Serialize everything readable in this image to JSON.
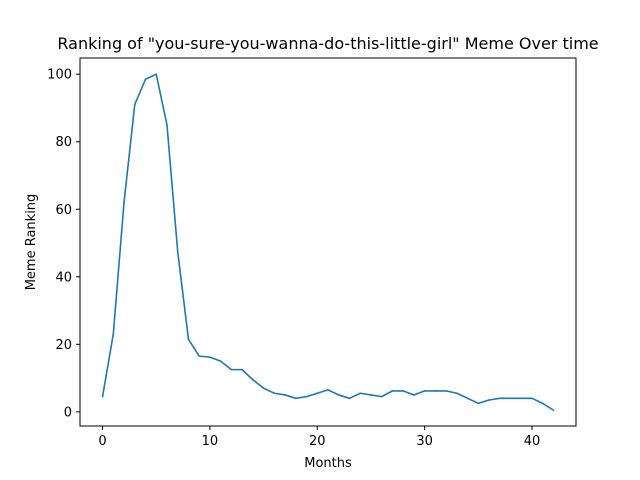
{
  "chart_data": {
    "type": "line",
    "title": "Ranking of \"you-sure-you-wanna-do-this-little-girl\" Meme Over time",
    "xlabel": "Months",
    "ylabel": "Meme Ranking",
    "xlim": [
      -2.1,
      44.1
    ],
    "ylim": [
      -4.2,
      104.8
    ],
    "xticks": [
      0,
      10,
      20,
      30,
      40
    ],
    "yticks": [
      0,
      20,
      40,
      60,
      80,
      100
    ],
    "grid": false,
    "series": [
      {
        "color": "#1f77b4",
        "x": [
          0,
          1,
          2,
          3,
          4,
          5,
          6,
          7,
          8,
          9,
          10,
          11,
          12,
          13,
          14,
          15,
          16,
          17,
          18,
          19,
          20,
          21,
          22,
          23,
          24,
          25,
          26,
          27,
          28,
          29,
          30,
          31,
          32,
          33,
          34,
          35,
          36,
          37,
          38,
          39,
          40,
          41,
          42
        ],
        "y": [
          4.5,
          23,
          62,
          91,
          98.5,
          100,
          85,
          47.5,
          21.5,
          16.5,
          16.2,
          15,
          12.5,
          12.5,
          9.5,
          7,
          5.5,
          5,
          4,
          4.5,
          5.5,
          6.5,
          5,
          4,
          5.5,
          5,
          4.5,
          6.2,
          6.2,
          5,
          6.2,
          6.2,
          6.2,
          5.5,
          4,
          2.5,
          3.5,
          4,
          4,
          4,
          4,
          2.5,
          0.5
        ]
      }
    ]
  }
}
